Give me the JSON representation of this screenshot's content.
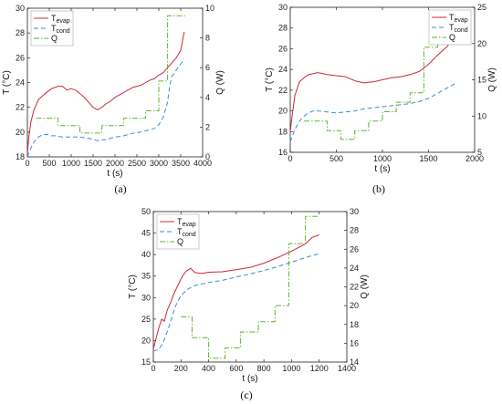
{
  "colors": {
    "evap": "#c8283c",
    "cond": "#3d8fd1",
    "q": "#5fb52e"
  },
  "chart_data": [
    {
      "id": "a",
      "panel_label": "(a)",
      "type": "line",
      "xlabel": "t (s)",
      "ylabel_left": "T (°C)",
      "ylabel_right": "Q (W)",
      "xlim": [
        0,
        4000
      ],
      "ylim_left": [
        18,
        30
      ],
      "ylim_right": [
        0,
        10
      ],
      "x_ticks": [
        "0",
        "500",
        "1000",
        "1500",
        "2000",
        "2500",
        "3000",
        "3500",
        "4000"
      ],
      "y_ticks_left": [
        "18",
        "20",
        "22",
        "24",
        "26",
        "28",
        "30"
      ],
      "y_ticks_right": [
        "0",
        "2",
        "4",
        "6",
        "8",
        "10"
      ],
      "legend": {
        "position": "top-left",
        "entries": [
          {
            "key": "evap",
            "base": "T",
            "sub": "evap"
          },
          {
            "key": "cond",
            "base": "T",
            "sub": "cond"
          },
          {
            "key": "q",
            "base": "Q",
            "sub": ""
          }
        ]
      },
      "series": [
        {
          "key": "evap",
          "axis": "left",
          "style": "solid",
          "x": [
            0,
            30,
            80,
            150,
            250,
            400,
            550,
            700,
            800,
            900,
            1000,
            1100,
            1200,
            1300,
            1400,
            1500,
            1600,
            1700,
            1800,
            1900,
            2000,
            2100,
            2200,
            2300,
            2400,
            2500,
            2600,
            2700,
            2800,
            2900,
            3000,
            3100,
            3200,
            3300,
            3400,
            3500,
            3580
          ],
          "y": [
            18.2,
            19.5,
            20.8,
            21.8,
            22.6,
            23.1,
            23.5,
            23.7,
            23.7,
            23.4,
            23.5,
            23.4,
            23.1,
            22.8,
            22.4,
            22.0,
            21.8,
            22.0,
            22.3,
            22.5,
            22.8,
            23.0,
            23.2,
            23.4,
            23.6,
            23.7,
            23.8,
            24.0,
            24.2,
            24.3,
            24.6,
            24.8,
            25.2,
            25.6,
            26.0,
            26.6,
            28.1
          ]
        },
        {
          "key": "cond",
          "axis": "left",
          "style": "dashed",
          "x": [
            0,
            30,
            80,
            150,
            250,
            350,
            450,
            550,
            650,
            800,
            1000,
            1200,
            1400,
            1600,
            1800,
            2000,
            2200,
            2400,
            2600,
            2800,
            2900,
            3000,
            3100,
            3200,
            3250,
            3300,
            3400,
            3500,
            3580
          ],
          "y": [
            18.0,
            18.3,
            18.7,
            19.2,
            19.6,
            19.8,
            19.8,
            19.7,
            19.7,
            19.6,
            19.6,
            19.6,
            19.5,
            19.3,
            19.4,
            19.6,
            19.7,
            19.9,
            20.0,
            20.2,
            20.3,
            20.6,
            21.2,
            22.4,
            23.8,
            24.5,
            25.0,
            25.5,
            25.9
          ]
        },
        {
          "key": "q",
          "axis": "right",
          "style": "dashdot",
          "step": true,
          "x": [
            200,
            700,
            700,
            1200,
            1200,
            1700,
            1700,
            2200,
            2200,
            2700,
            2700,
            3000,
            3000,
            3200,
            3200,
            3600
          ],
          "y": [
            2.6,
            2.6,
            2.1,
            2.1,
            1.6,
            1.6,
            2.1,
            2.1,
            2.6,
            2.6,
            3.1,
            3.1,
            5.1,
            5.1,
            9.5,
            9.5
          ]
        }
      ]
    },
    {
      "id": "b",
      "panel_label": "(b)",
      "type": "line",
      "xlabel": "t (s)",
      "ylabel_left": "T (°C)",
      "ylabel_right": "Q (W)",
      "xlim": [
        0,
        2000
      ],
      "ylim_left": [
        16,
        30
      ],
      "ylim_right": [
        5,
        25
      ],
      "x_ticks": [
        "0",
        "500",
        "1000",
        "1500",
        "2000"
      ],
      "y_ticks_left": [
        "16",
        "18",
        "20",
        "22",
        "24",
        "26",
        "28",
        "30"
      ],
      "y_ticks_right": [
        "5",
        "10",
        "15",
        "20",
        "25"
      ],
      "legend": {
        "position": "top-right",
        "entries": [
          {
            "key": "evap",
            "base": "T",
            "sub": "evap"
          },
          {
            "key": "cond",
            "base": "T",
            "sub": "cond"
          },
          {
            "key": "q",
            "base": "Q",
            "sub": ""
          }
        ]
      },
      "series": [
        {
          "key": "evap",
          "axis": "left",
          "style": "solid",
          "x": [
            0,
            20,
            50,
            100,
            150,
            200,
            250,
            300,
            400,
            500,
            600,
            700,
            800,
            900,
            1000,
            1100,
            1200,
            1300,
            1400,
            1500,
            1600,
            1700,
            1800
          ],
          "y": [
            18.0,
            19.5,
            21.5,
            22.8,
            23.2,
            23.5,
            23.6,
            23.7,
            23.5,
            23.4,
            23.3,
            22.9,
            22.7,
            22.8,
            23.0,
            23.2,
            23.3,
            23.5,
            23.8,
            24.5,
            25.4,
            26.2,
            27.4
          ]
        },
        {
          "key": "cond",
          "axis": "left",
          "style": "dashed",
          "x": [
            0,
            20,
            50,
            100,
            150,
            200,
            250,
            300,
            400,
            500,
            600,
            700,
            800,
            900,
            1000,
            1100,
            1200,
            1300,
            1400,
            1500,
            1600,
            1700,
            1800
          ],
          "y": [
            17.0,
            17.5,
            18.2,
            19.0,
            19.5,
            19.8,
            20.0,
            20.0,
            19.9,
            19.8,
            19.9,
            20.0,
            20.2,
            20.3,
            20.4,
            20.5,
            20.6,
            20.7,
            20.9,
            21.2,
            21.7,
            22.2,
            22.7
          ]
        },
        {
          "key": "q",
          "axis": "right",
          "style": "dashdot",
          "step": true,
          "x": [
            150,
            400,
            400,
            550,
            550,
            700,
            700,
            850,
            850,
            1000,
            1000,
            1150,
            1150,
            1300,
            1300,
            1450,
            1450,
            1600,
            1600,
            1800
          ],
          "y": [
            9.3,
            9.3,
            8.0,
            8.0,
            6.8,
            6.8,
            8.0,
            8.0,
            9.3,
            9.3,
            10.6,
            10.6,
            11.9,
            11.9,
            13.2,
            13.2,
            19.5,
            19.5,
            22.5,
            22.5
          ]
        }
      ]
    },
    {
      "id": "c",
      "panel_label": "(c)",
      "type": "line",
      "xlabel": "t (s)",
      "ylabel_left": "T (°C)",
      "ylabel_right": "Q (W)",
      "xlim": [
        0,
        1400
      ],
      "ylim_left": [
        15,
        50
      ],
      "ylim_right": [
        14,
        30
      ],
      "x_ticks": [
        "0",
        "200",
        "400",
        "600",
        "800",
        "1000",
        "1200",
        "1400"
      ],
      "y_ticks_left": [
        "15",
        "20",
        "25",
        "30",
        "35",
        "40",
        "45",
        "50"
      ],
      "y_ticks_right": [
        "14",
        "16",
        "18",
        "20",
        "22",
        "24",
        "26",
        "28",
        "30"
      ],
      "legend": {
        "position": "top-left",
        "entries": [
          {
            "key": "evap",
            "base": "T",
            "sub": "evap"
          },
          {
            "key": "cond",
            "base": "T",
            "sub": "cond"
          },
          {
            "key": "q",
            "base": "Q",
            "sub": ""
          }
        ]
      },
      "series": [
        {
          "key": "evap",
          "axis": "left",
          "style": "solid",
          "x": [
            0,
            20,
            40,
            60,
            80,
            100,
            120,
            150,
            180,
            210,
            240,
            270,
            300,
            350,
            400,
            500,
            600,
            700,
            800,
            900,
            1000,
            1100,
            1150,
            1200
          ],
          "y": [
            18.0,
            20.5,
            23.0,
            25.0,
            24.5,
            27.0,
            28.5,
            31.0,
            33.0,
            35.0,
            36.2,
            36.8,
            35.8,
            35.6,
            35.9,
            36.0,
            36.5,
            37.0,
            38.0,
            39.3,
            40.8,
            42.5,
            44.0,
            44.6
          ]
        },
        {
          "key": "cond",
          "axis": "left",
          "style": "dashed",
          "x": [
            0,
            40,
            70,
            100,
            130,
            160,
            200,
            250,
            300,
            400,
            500,
            600,
            700,
            800,
            900,
            1000,
            1100,
            1200
          ],
          "y": [
            17.5,
            18.0,
            19.5,
            22.0,
            25.0,
            28.0,
            30.5,
            32.0,
            32.8,
            33.5,
            34.0,
            34.8,
            35.5,
            36.3,
            37.2,
            38.2,
            39.3,
            40.2
          ]
        },
        {
          "key": "q",
          "axis": "right",
          "style": "dashdot",
          "step": true,
          "x": [
            200,
            280,
            280,
            400,
            400,
            520,
            520,
            630,
            630,
            760,
            760,
            880,
            880,
            980,
            980,
            1100,
            1100,
            1200
          ],
          "y": [
            18.8,
            18.8,
            16.6,
            16.6,
            14.4,
            14.4,
            15.5,
            15.5,
            17.2,
            17.2,
            18.3,
            18.3,
            20.0,
            20.0,
            26.6,
            26.6,
            29.5,
            29.5
          ]
        }
      ]
    }
  ]
}
